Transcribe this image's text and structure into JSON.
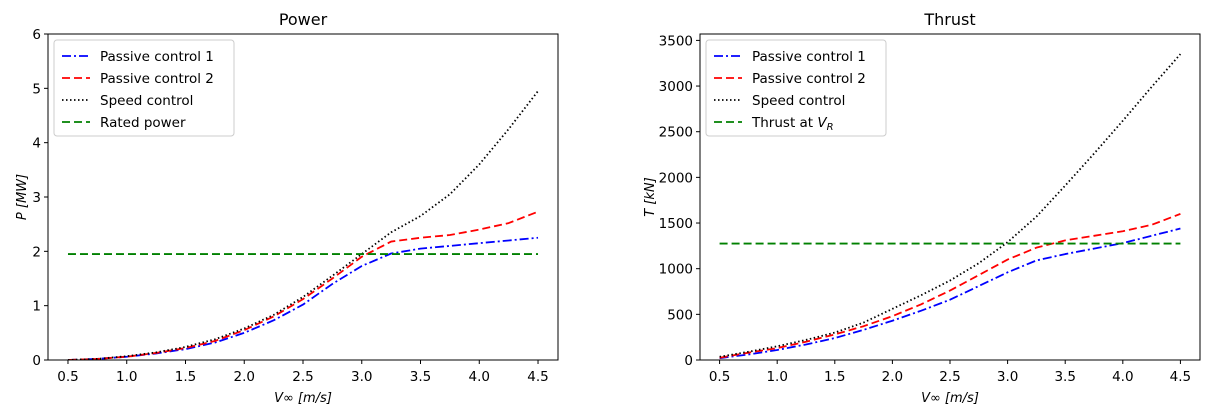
{
  "figure": {
    "background": "#ffffff"
  },
  "chart_data": [
    {
      "id": "power",
      "type": "line",
      "title": "Power",
      "xlabel": "V∞ [m/s]",
      "ylabel": "P [MW]",
      "xlim": [
        0.33,
        4.67
      ],
      "ylim": [
        0,
        6
      ],
      "xticks": [
        0.5,
        1.0,
        1.5,
        2.0,
        2.5,
        3.0,
        3.5,
        4.0,
        4.5
      ],
      "xtick_labels": [
        "0.5",
        "1.0",
        "1.5",
        "2.0",
        "2.5",
        "3.0",
        "3.5",
        "4.0",
        "4.5"
      ],
      "yticks": [
        0,
        1,
        2,
        3,
        4,
        5,
        6
      ],
      "ytick_labels": [
        "0",
        "1",
        "2",
        "3",
        "4",
        "5",
        "6"
      ],
      "legend_position": "top-left",
      "series": [
        {
          "name": "Passive control 1",
          "color": "#0000ff",
          "dash": "dashdot",
          "x": [
            0.5,
            0.75,
            1.0,
            1.25,
            1.5,
            1.75,
            2.0,
            2.25,
            2.5,
            2.75,
            3.0,
            3.25,
            3.5,
            3.75,
            4.0,
            4.25,
            4.5
          ],
          "y": [
            0.0,
            0.02,
            0.06,
            0.12,
            0.2,
            0.32,
            0.5,
            0.73,
            1.02,
            1.4,
            1.73,
            1.96,
            2.05,
            2.1,
            2.15,
            2.2,
            2.25
          ]
        },
        {
          "name": "Passive control 2",
          "color": "#ff0000",
          "dash": "dashed",
          "x": [
            0.5,
            0.75,
            1.0,
            1.25,
            1.5,
            1.75,
            2.0,
            2.25,
            2.5,
            2.75,
            3.0,
            3.25,
            3.5,
            3.75,
            4.0,
            4.25,
            4.5
          ],
          "y": [
            0.0,
            0.02,
            0.06,
            0.13,
            0.22,
            0.35,
            0.55,
            0.8,
            1.12,
            1.5,
            1.9,
            2.18,
            2.25,
            2.3,
            2.4,
            2.52,
            2.73
          ]
        },
        {
          "name": "Speed control",
          "color": "#000000",
          "dash": "dotted",
          "x": [
            0.5,
            0.75,
            1.0,
            1.25,
            1.5,
            1.75,
            2.0,
            2.25,
            2.5,
            2.75,
            3.0,
            3.25,
            3.5,
            3.75,
            4.0,
            4.25,
            4.5
          ],
          "y": [
            0.0,
            0.02,
            0.07,
            0.14,
            0.24,
            0.38,
            0.58,
            0.83,
            1.16,
            1.55,
            1.95,
            2.35,
            2.65,
            3.05,
            3.6,
            4.25,
            4.95
          ]
        },
        {
          "name": "Rated power",
          "color": "#008000",
          "dash": "dashed",
          "x": [
            0.5,
            4.5
          ],
          "y": [
            1.95,
            1.95
          ]
        }
      ]
    },
    {
      "id": "thrust",
      "type": "line",
      "title": "Thrust",
      "xlabel": "V∞ [m/s]",
      "ylabel": "T [kN]",
      "xlim": [
        0.33,
        4.67
      ],
      "ylim": [
        0,
        3570
      ],
      "xticks": [
        0.5,
        1.0,
        1.5,
        2.0,
        2.5,
        3.0,
        3.5,
        4.0,
        4.5
      ],
      "xtick_labels": [
        "0.5",
        "1.0",
        "1.5",
        "2.0",
        "2.5",
        "3.0",
        "3.5",
        "4.0",
        "4.5"
      ],
      "yticks": [
        0,
        500,
        1000,
        1500,
        2000,
        2500,
        3000,
        3500
      ],
      "ytick_labels": [
        "0",
        "500",
        "1000",
        "1500",
        "2000",
        "2500",
        "3000",
        "3500"
      ],
      "legend_position": "top-left",
      "series": [
        {
          "name": "Passive control 1",
          "color": "#0000ff",
          "dash": "dashdot",
          "x": [
            0.5,
            0.75,
            1.0,
            1.25,
            1.5,
            1.75,
            2.0,
            2.25,
            2.5,
            2.75,
            3.0,
            3.25,
            3.5,
            3.75,
            4.0,
            4.25,
            4.5
          ],
          "y": [
            20,
            60,
            110,
            170,
            240,
            330,
            430,
            540,
            660,
            810,
            960,
            1090,
            1160,
            1220,
            1280,
            1360,
            1440
          ]
        },
        {
          "name": "Passive control 2",
          "color": "#ff0000",
          "dash": "dashed",
          "x": [
            0.5,
            0.75,
            1.0,
            1.25,
            1.5,
            1.75,
            2.0,
            2.25,
            2.5,
            2.75,
            3.0,
            3.25,
            3.5,
            3.75,
            4.0,
            4.25,
            4.5
          ],
          "y": [
            25,
            80,
            130,
            200,
            280,
            370,
            480,
            610,
            760,
            930,
            1100,
            1230,
            1310,
            1360,
            1410,
            1480,
            1600
          ]
        },
        {
          "name": "Speed control",
          "color": "#000000",
          "dash": "dotted",
          "x": [
            0.5,
            0.75,
            1.0,
            1.25,
            1.5,
            1.75,
            2.0,
            2.25,
            2.5,
            2.75,
            3.0,
            3.25,
            3.5,
            3.75,
            4.0,
            4.25,
            4.5
          ],
          "y": [
            35,
            90,
            150,
            220,
            300,
            410,
            560,
            710,
            870,
            1060,
            1290,
            1570,
            1910,
            2260,
            2620,
            2990,
            3350
          ]
        },
        {
          "name": "Thrust at V_R",
          "color": "#008000",
          "dash": "dashed",
          "x": [
            0.5,
            4.5
          ],
          "y": [
            1275,
            1275
          ]
        }
      ]
    }
  ]
}
